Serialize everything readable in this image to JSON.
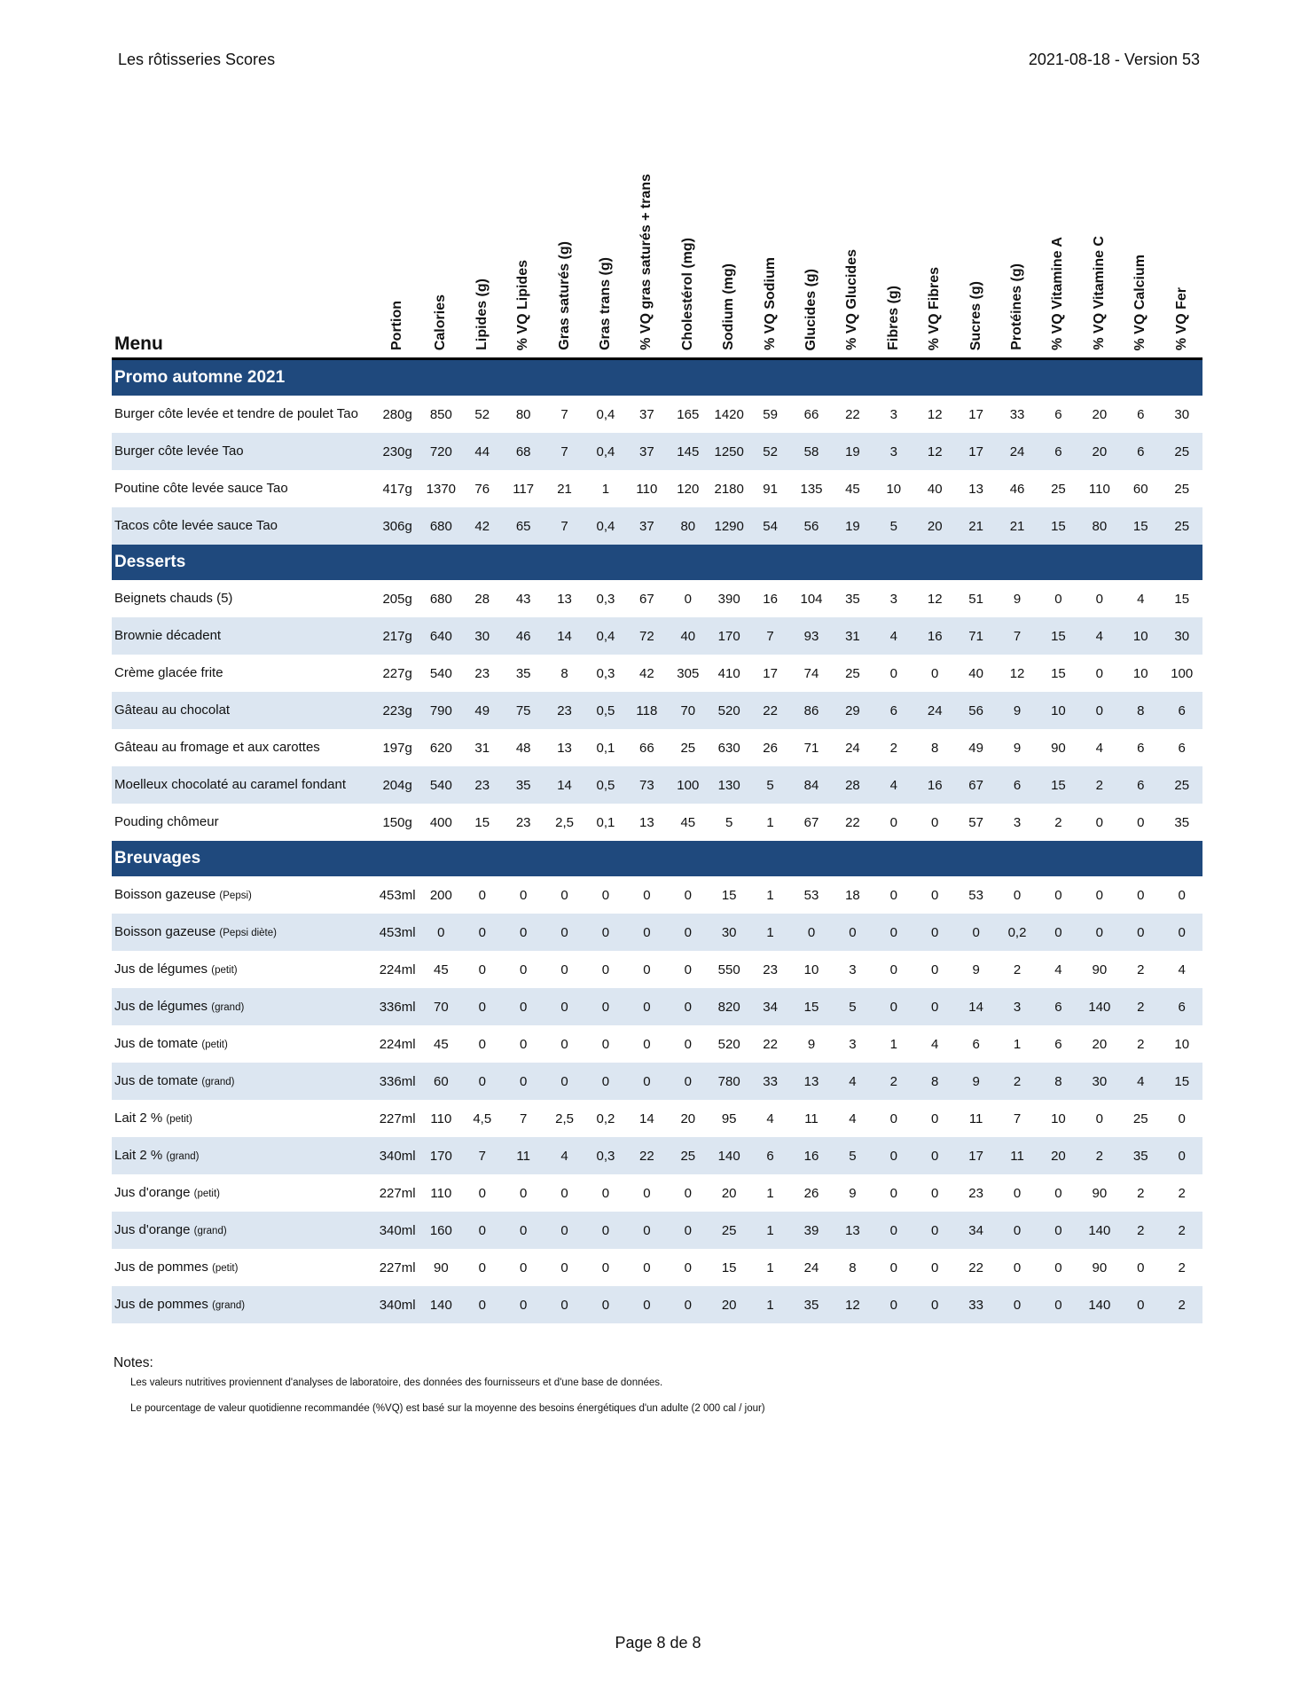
{
  "header": {
    "title": "Les rôtisseries Scores",
    "version": "2021-08-18 - Version 53"
  },
  "table": {
    "menu_label": "Menu",
    "columns": [
      "Portion",
      "Calories",
      "Lipides (g)",
      "% VQ Lipides",
      "Gras saturés (g)",
      "Gras trans (g)",
      "% VQ gras saturés + trans",
      "Cholestérol (mg)",
      "Sodium (mg)",
      "% VQ Sodium",
      "Glucides (g)",
      "% VQ Glucides",
      "Fibres (g)",
      "% VQ Fibres",
      "Sucres (g)",
      "Protéines (g)",
      "% VQ Vitamine A",
      "% VQ Vitamine C",
      "% VQ Calcium",
      "% VQ Fer"
    ],
    "sections": [
      {
        "title": "Promo automne 2021",
        "items": [
          {
            "name": "Burger côte levée et tendre de poulet Tao",
            "size": "",
            "values": [
              "280g",
              "850",
              "52",
              "80",
              "7",
              "0,4",
              "37",
              "165",
              "1420",
              "59",
              "66",
              "22",
              "3",
              "12",
              "17",
              "33",
              "6",
              "20",
              "6",
              "30"
            ]
          },
          {
            "name": "Burger côte levée Tao",
            "size": "",
            "values": [
              "230g",
              "720",
              "44",
              "68",
              "7",
              "0,4",
              "37",
              "145",
              "1250",
              "52",
              "58",
              "19",
              "3",
              "12",
              "17",
              "24",
              "6",
              "20",
              "6",
              "25"
            ]
          },
          {
            "name": "Poutine côte levée sauce Tao",
            "size": "",
            "values": [
              "417g",
              "1370",
              "76",
              "117",
              "21",
              "1",
              "110",
              "120",
              "2180",
              "91",
              "135",
              "45",
              "10",
              "40",
              "13",
              "46",
              "25",
              "110",
              "60",
              "25"
            ]
          },
          {
            "name": "Tacos côte levée sauce Tao",
            "size": "",
            "values": [
              "306g",
              "680",
              "42",
              "65",
              "7",
              "0,4",
              "37",
              "80",
              "1290",
              "54",
              "56",
              "19",
              "5",
              "20",
              "21",
              "21",
              "15",
              "80",
              "15",
              "25"
            ]
          }
        ]
      },
      {
        "title": "Desserts",
        "items": [
          {
            "name": "Beignets chauds (5)",
            "size": "",
            "values": [
              "205g",
              "680",
              "28",
              "43",
              "13",
              "0,3",
              "67",
              "0",
              "390",
              "16",
              "104",
              "35",
              "3",
              "12",
              "51",
              "9",
              "0",
              "0",
              "4",
              "15"
            ]
          },
          {
            "name": "Brownie décadent",
            "size": "",
            "values": [
              "217g",
              "640",
              "30",
              "46",
              "14",
              "0,4",
              "72",
              "40",
              "170",
              "7",
              "93",
              "31",
              "4",
              "16",
              "71",
              "7",
              "15",
              "4",
              "10",
              "30"
            ]
          },
          {
            "name": "Crème glacée frite",
            "size": "",
            "values": [
              "227g",
              "540",
              "23",
              "35",
              "8",
              "0,3",
              "42",
              "305",
              "410",
              "17",
              "74",
              "25",
              "0",
              "0",
              "40",
              "12",
              "15",
              "0",
              "10",
              "100"
            ]
          },
          {
            "name": "Gâteau au chocolat",
            "size": "",
            "values": [
              "223g",
              "790",
              "49",
              "75",
              "23",
              "0,5",
              "118",
              "70",
              "520",
              "22",
              "86",
              "29",
              "6",
              "24",
              "56",
              "9",
              "10",
              "0",
              "8",
              "6"
            ]
          },
          {
            "name": "Gâteau au fromage et aux carottes",
            "size": "",
            "values": [
              "197g",
              "620",
              "31",
              "48",
              "13",
              "0,1",
              "66",
              "25",
              "630",
              "26",
              "71",
              "24",
              "2",
              "8",
              "49",
              "9",
              "90",
              "4",
              "6",
              "6"
            ]
          },
          {
            "name": "Moelleux chocolaté au caramel fondant",
            "size": "",
            "values": [
              "204g",
              "540",
              "23",
              "35",
              "14",
              "0,5",
              "73",
              "100",
              "130",
              "5",
              "84",
              "28",
              "4",
              "16",
              "67",
              "6",
              "15",
              "2",
              "6",
              "25"
            ]
          },
          {
            "name": "Pouding chômeur",
            "size": "",
            "values": [
              "150g",
              "400",
              "15",
              "23",
              "2,5",
              "0,1",
              "13",
              "45",
              "5",
              "1",
              "67",
              "22",
              "0",
              "0",
              "57",
              "3",
              "2",
              "0",
              "0",
              "35"
            ]
          }
        ]
      },
      {
        "title": "Breuvages",
        "items": [
          {
            "name": "Boisson gazeuse",
            "size": "(Pepsi)",
            "values": [
              "453ml",
              "200",
              "0",
              "0",
              "0",
              "0",
              "0",
              "0",
              "15",
              "1",
              "53",
              "18",
              "0",
              "0",
              "53",
              "0",
              "0",
              "0",
              "0",
              "0"
            ]
          },
          {
            "name": "Boisson gazeuse",
            "size": "(Pepsi diète)",
            "values": [
              "453ml",
              "0",
              "0",
              "0",
              "0",
              "0",
              "0",
              "0",
              "30",
              "1",
              "0",
              "0",
              "0",
              "0",
              "0",
              "0,2",
              "0",
              "0",
              "0",
              "0"
            ]
          },
          {
            "name": "Jus de légumes",
            "size": "(petit)",
            "values": [
              "224ml",
              "45",
              "0",
              "0",
              "0",
              "0",
              "0",
              "0",
              "550",
              "23",
              "10",
              "3",
              "0",
              "0",
              "9",
              "2",
              "4",
              "90",
              "2",
              "4"
            ]
          },
          {
            "name": "Jus de légumes",
            "size": "(grand)",
            "values": [
              "336ml",
              "70",
              "0",
              "0",
              "0",
              "0",
              "0",
              "0",
              "820",
              "34",
              "15",
              "5",
              "0",
              "0",
              "14",
              "3",
              "6",
              "140",
              "2",
              "6"
            ]
          },
          {
            "name": "Jus de tomate",
            "size": "(petit)",
            "values": [
              "224ml",
              "45",
              "0",
              "0",
              "0",
              "0",
              "0",
              "0",
              "520",
              "22",
              "9",
              "3",
              "1",
              "4",
              "6",
              "1",
              "6",
              "20",
              "2",
              "10"
            ]
          },
          {
            "name": "Jus de tomate",
            "size": "(grand)",
            "values": [
              "336ml",
              "60",
              "0",
              "0",
              "0",
              "0",
              "0",
              "0",
              "780",
              "33",
              "13",
              "4",
              "2",
              "8",
              "9",
              "2",
              "8",
              "30",
              "4",
              "15"
            ]
          },
          {
            "name": "Lait 2 %",
            "size": "(petit)",
            "values": [
              "227ml",
              "110",
              "4,5",
              "7",
              "2,5",
              "0,2",
              "14",
              "20",
              "95",
              "4",
              "11",
              "4",
              "0",
              "0",
              "11",
              "7",
              "10",
              "0",
              "25",
              "0"
            ]
          },
          {
            "name": "Lait 2 %",
            "size": "(grand)",
            "values": [
              "340ml",
              "170",
              "7",
              "11",
              "4",
              "0,3",
              "22",
              "25",
              "140",
              "6",
              "16",
              "5",
              "0",
              "0",
              "17",
              "11",
              "20",
              "2",
              "35",
              "0"
            ]
          },
          {
            "name": "Jus d'orange",
            "size": "(petit)",
            "values": [
              "227ml",
              "110",
              "0",
              "0",
              "0",
              "0",
              "0",
              "0",
              "20",
              "1",
              "26",
              "9",
              "0",
              "0",
              "23",
              "0",
              "0",
              "90",
              "2",
              "2"
            ]
          },
          {
            "name": "Jus d'orange",
            "size": "(grand)",
            "values": [
              "340ml",
              "160",
              "0",
              "0",
              "0",
              "0",
              "0",
              "0",
              "25",
              "1",
              "39",
              "13",
              "0",
              "0",
              "34",
              "0",
              "0",
              "140",
              "2",
              "2"
            ]
          },
          {
            "name": "Jus de pommes",
            "size": "(petit)",
            "values": [
              "227ml",
              "90",
              "0",
              "0",
              "0",
              "0",
              "0",
              "0",
              "15",
              "1",
              "24",
              "8",
              "0",
              "0",
              "22",
              "0",
              "0",
              "90",
              "0",
              "2"
            ]
          },
          {
            "name": "Jus de pommes",
            "size": "(grand)",
            "values": [
              "340ml",
              "140",
              "0",
              "0",
              "0",
              "0",
              "0",
              "0",
              "20",
              "1",
              "35",
              "12",
              "0",
              "0",
              "33",
              "0",
              "0",
              "140",
              "0",
              "2"
            ]
          }
        ]
      }
    ]
  },
  "notes": {
    "title": "Notes:",
    "lines": [
      "Les valeurs nutritives proviennent d'analyses de laboratoire, des données des fournisseurs et d'une base de données.",
      "Le pourcentage de valeur quotidienne recommandée (%VQ) est basé sur la moyenne des besoins énergétiques d'un adulte (2 000 cal / jour)"
    ]
  },
  "footer": {
    "page": "Page 8 de 8"
  },
  "colors": {
    "section_bg": "#1f497d",
    "alt_row": "#dce6f1"
  }
}
